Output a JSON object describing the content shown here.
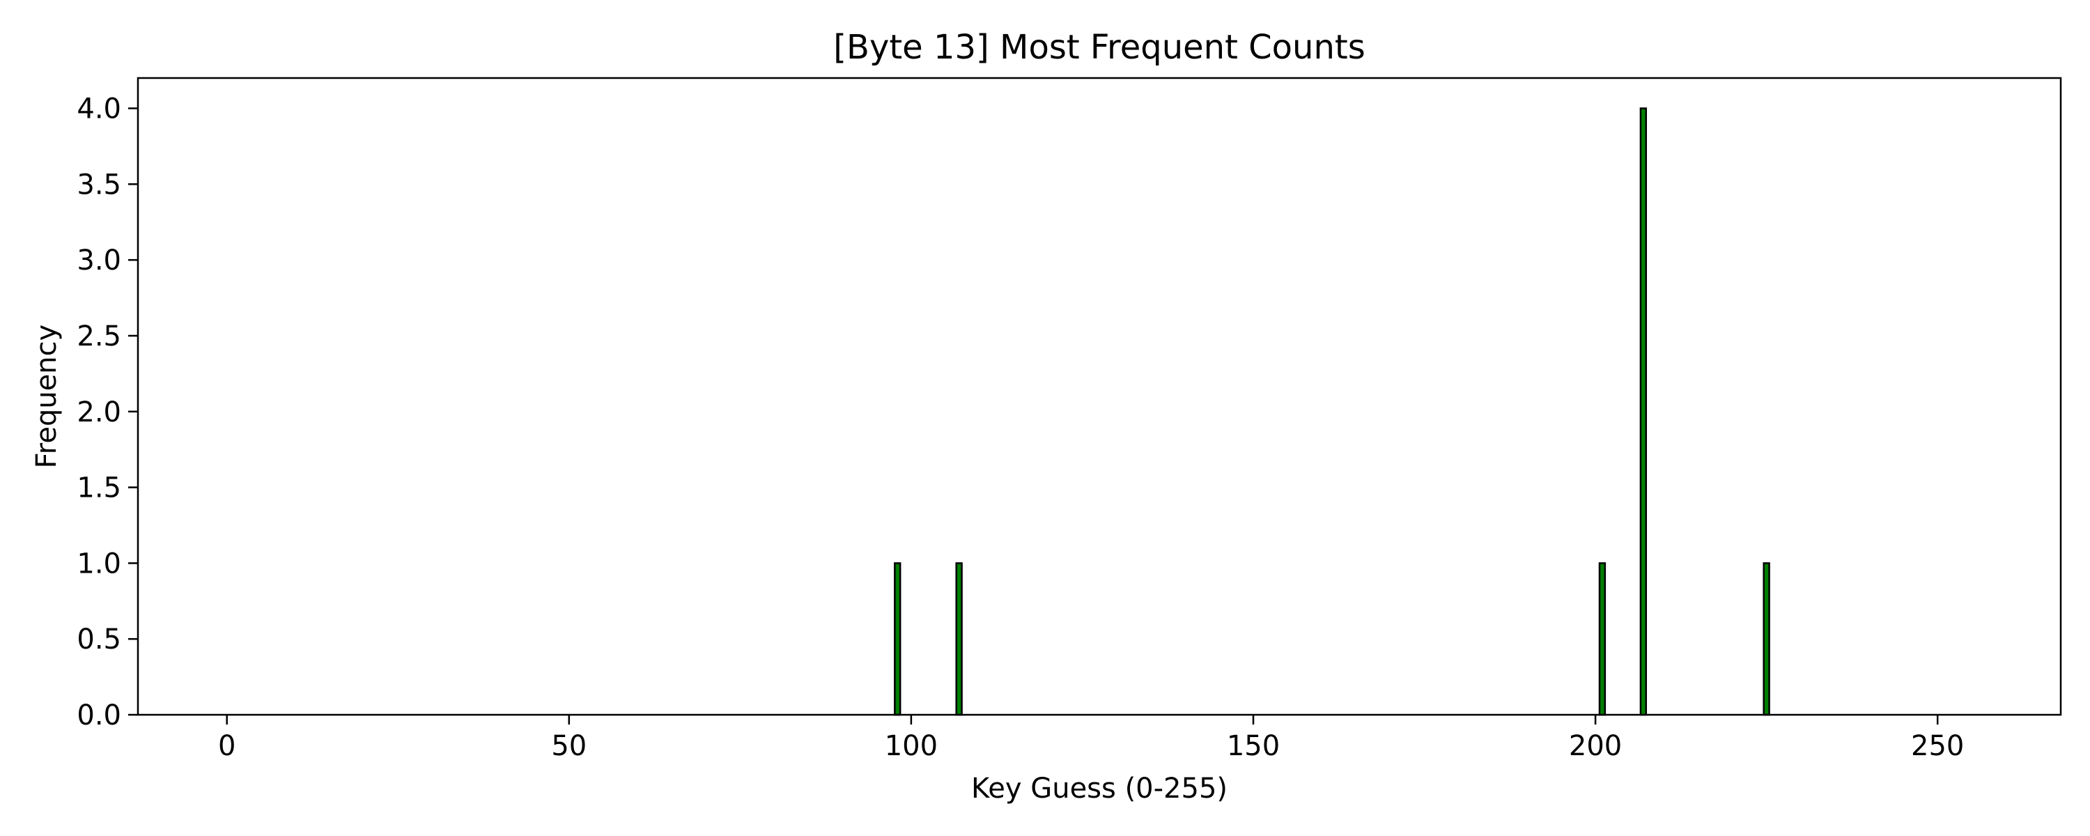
{
  "chart_data": {
    "type": "bar",
    "title": "[Byte 13] Most Frequent Counts",
    "xlabel": "Key Guess (0-255)",
    "ylabel": "Frequency",
    "xlim": [
      -13,
      268
    ],
    "ylim": [
      0,
      4.2
    ],
    "xticks": [
      0,
      50,
      100,
      150,
      200,
      250
    ],
    "yticks": [
      "0.0",
      "0.5",
      "1.0",
      "1.5",
      "2.0",
      "2.5",
      "3.0",
      "3.5",
      "4.0"
    ],
    "bar_color": "#008000",
    "edge_color": "#000000",
    "grid": false,
    "legend": false,
    "x_range": [
      0,
      255
    ],
    "nonzero": [
      {
        "x": 98,
        "y": 1
      },
      {
        "x": 107,
        "y": 1
      },
      {
        "x": 201,
        "y": 1
      },
      {
        "x": 207,
        "y": 4
      },
      {
        "x": 225,
        "y": 1
      }
    ]
  }
}
